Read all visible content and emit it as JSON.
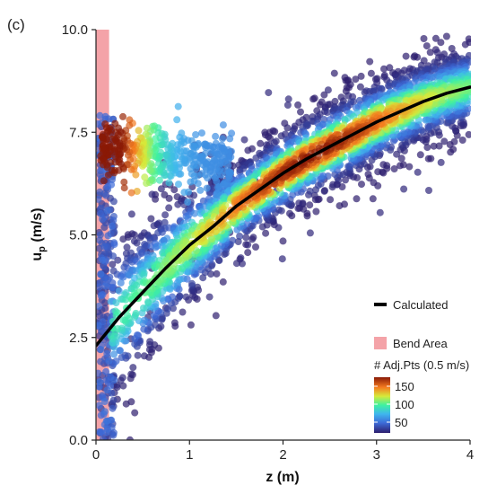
{
  "panel_label": "(c)",
  "chart_data": {
    "type": "scatter",
    "xlabel": "z (m)",
    "ylabel_main": "u",
    "ylabel_sub": "p",
    "ylabel_unit": " (m/s)",
    "xlim": [
      0,
      4
    ],
    "ylim": [
      0,
      10
    ],
    "x_ticks": [
      "0",
      "1",
      "2",
      "3",
      "4"
    ],
    "y_ticks": [
      "0.0",
      "2.5",
      "5.0",
      "7.5",
      "10.0"
    ],
    "grid": false,
    "legend_placement": "bottom-right",
    "legend": {
      "calculated_label": "Calculated",
      "bend_label": "Bend Area",
      "colorbar_title": "# Adj.Pts (0.5 m/s)",
      "colorbar_ticks": [
        "150",
        "100",
        "50"
      ],
      "colorbar_tick_values": [
        150,
        100,
        50
      ],
      "colorbar_range": [
        20,
        175
      ]
    },
    "bend_area": {
      "x_start": 0,
      "x_end": 0.14,
      "color": "#f4a3a8"
    },
    "calculated_curve": {
      "color": "#000000",
      "points": [
        [
          0,
          2.3
        ],
        [
          0.25,
          3.0
        ],
        [
          0.5,
          3.6
        ],
        [
          0.75,
          4.2
        ],
        [
          1.0,
          4.75
        ],
        [
          1.25,
          5.2
        ],
        [
          1.5,
          5.7
        ],
        [
          1.75,
          6.1
        ],
        [
          2.0,
          6.5
        ],
        [
          2.25,
          6.85
        ],
        [
          2.5,
          7.15
        ],
        [
          2.75,
          7.45
        ],
        [
          3.0,
          7.75
        ],
        [
          3.25,
          8.0
        ],
        [
          3.5,
          8.25
        ],
        [
          3.75,
          8.45
        ],
        [
          4.0,
          8.6
        ]
      ]
    },
    "series": [
      {
        "name": "# Adj.Pts (0.5 m/s)",
        "description_of_cloud": "dense point cloud around the calculated curve, colored by local point density"
      }
    ],
    "colors": {
      "low": "#2d1e6e",
      "mid1": "#3fa6ee",
      "mid2": "#3ef2a0",
      "mid3": "#e6e83a",
      "mid4": "#f57b1f",
      "high": "#8a1a06"
    }
  }
}
